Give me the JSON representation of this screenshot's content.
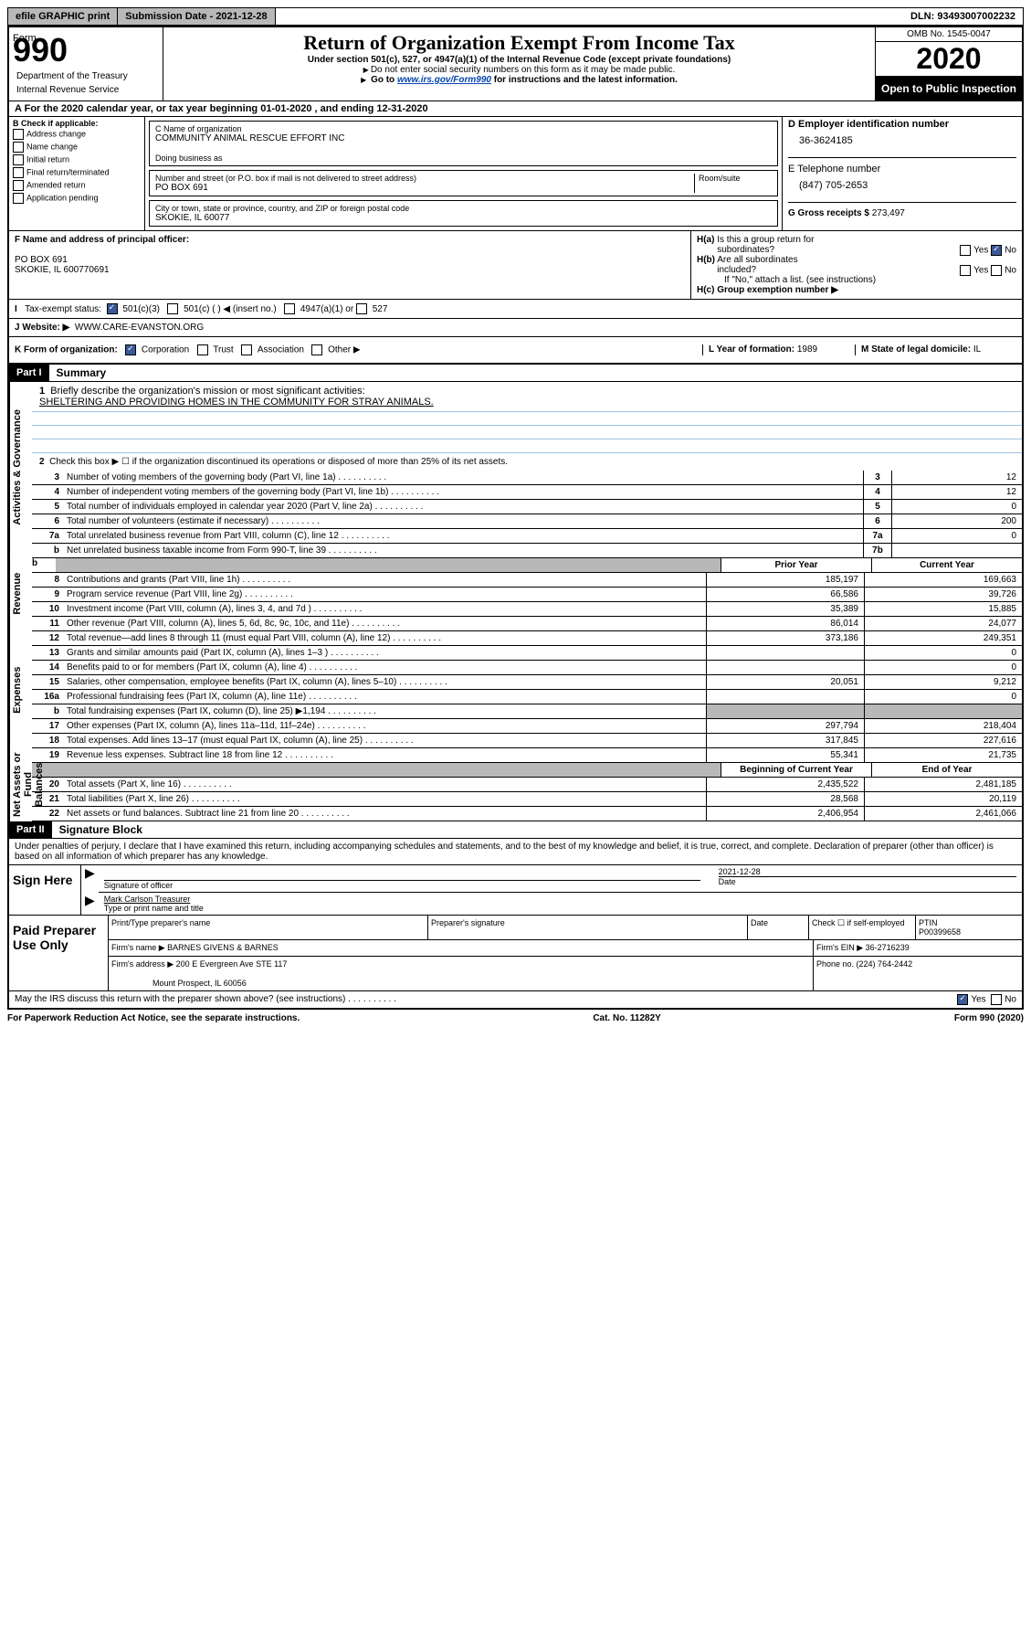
{
  "topbar": {
    "efile": "efile GRAPHIC print",
    "submission_label": "Submission Date - 2021-12-28",
    "dln": "DLN: 93493007002232"
  },
  "header": {
    "form_label": "Form",
    "form_number": "990",
    "title": "Return of Organization Exempt From Income Tax",
    "subtitle": "Under section 501(c), 527, or 4947(a)(1) of the Internal Revenue Code (except private foundations)",
    "instruction1": "Do not enter social security numbers on this form as it may be made public.",
    "instruction2_pre": "Go to ",
    "instruction2_link": "www.irs.gov/Form990",
    "instruction2_post": " for instructions and the latest information.",
    "omb": "OMB No. 1545-0047",
    "year": "2020",
    "open_public": "Open to Public Inspection",
    "dept": "Department of the Treasury",
    "irs": "Internal Revenue Service"
  },
  "section_a": {
    "text": "For the 2020 calendar year, or tax year beginning 01-01-2020    , and ending 12-31-2020"
  },
  "section_b": {
    "label": "B Check if applicable:",
    "items": [
      "Address change",
      "Name change",
      "Initial return",
      "Final return/terminated",
      "Amended return",
      "Application pending"
    ]
  },
  "section_c": {
    "name_label": "C Name of organization",
    "name": "COMMUNITY ANIMAL RESCUE EFFORT INC",
    "dba_label": "Doing business as",
    "address_label": "Number and street (or P.O. box if mail is not delivered to street address)",
    "room_label": "Room/suite",
    "address": "PO BOX 691",
    "city_label": "City or town, state or province, country, and ZIP or foreign postal code",
    "city": "SKOKIE, IL  60077"
  },
  "section_d": {
    "label": "D Employer identification number",
    "ein": "36-3624185"
  },
  "section_e": {
    "label": "E Telephone number",
    "phone": "(847) 705-2653"
  },
  "section_g": {
    "label": "G Gross receipts $ ",
    "amount": "273,497"
  },
  "section_f": {
    "label": "F Name and address of principal officer:",
    "addr1": "PO BOX 691",
    "addr2": "SKOKIE, IL  600770691"
  },
  "section_h": {
    "ha_label": "H(a)  Is this a group return for subordinates?",
    "hb_label": "H(b)  Are all subordinates included?",
    "hb_note": "If \"No,\" attach a list. (see instructions)",
    "hc_label": "H(c)  Group exemption number ▶"
  },
  "section_i": {
    "label": "Tax-exempt status:",
    "opts": [
      "501(c)(3)",
      "501(c) (  ) ◀ (insert no.)",
      "4947(a)(1) or",
      "527"
    ]
  },
  "section_j": {
    "label": "J    Website: ▶",
    "website": "WWW.CARE-EVANSTON.ORG"
  },
  "section_k": {
    "label": "K Form of organization:",
    "opts": [
      "Corporation",
      "Trust",
      "Association",
      "Other ▶"
    ]
  },
  "section_l": {
    "label": "L Year of formation: ",
    "year": "1989"
  },
  "section_m": {
    "label": "M State of legal domicile: ",
    "state": "IL"
  },
  "part1": {
    "header": "Part I",
    "title": "Summary",
    "side_labels": [
      "Activities & Governance",
      "Revenue",
      "Expenses",
      "Net Assets or Fund Balances"
    ],
    "line1_label": "Briefly describe the organization's mission or most significant activities:",
    "line1_text": "SHELTERING AND PROVIDING HOMES IN THE COMMUNITY FOR STRAY ANIMALS.",
    "line2": "Check this box ▶ ☐  if the organization discontinued its operations or disposed of more than 25% of its net assets.",
    "governance_rows": [
      {
        "n": "3",
        "desc": "Number of voting members of the governing body (Part VI, line 1a)",
        "box": "3",
        "val": "12"
      },
      {
        "n": "4",
        "desc": "Number of independent voting members of the governing body (Part VI, line 1b)",
        "box": "4",
        "val": "12"
      },
      {
        "n": "5",
        "desc": "Total number of individuals employed in calendar year 2020 (Part V, line 2a)",
        "box": "5",
        "val": "0"
      },
      {
        "n": "6",
        "desc": "Total number of volunteers (estimate if necessary)",
        "box": "6",
        "val": "200"
      },
      {
        "n": "7a",
        "desc": "Total unrelated business revenue from Part VIII, column (C), line 12",
        "box": "7a",
        "val": "0"
      },
      {
        "n": "b",
        "desc": "Net unrelated business taxable income from Form 990-T, line 39",
        "box": "7b",
        "val": ""
      }
    ],
    "col_headers": {
      "prior": "Prior Year",
      "current": "Current Year",
      "begin": "Beginning of Current Year",
      "end": "End of Year"
    },
    "revenue_rows": [
      {
        "n": "8",
        "desc": "Contributions and grants (Part VIII, line 1h)",
        "prior": "185,197",
        "curr": "169,663"
      },
      {
        "n": "9",
        "desc": "Program service revenue (Part VIII, line 2g)",
        "prior": "66,586",
        "curr": "39,726"
      },
      {
        "n": "10",
        "desc": "Investment income (Part VIII, column (A), lines 3, 4, and 7d )",
        "prior": "35,389",
        "curr": "15,885"
      },
      {
        "n": "11",
        "desc": "Other revenue (Part VIII, column (A), lines 5, 6d, 8c, 9c, 10c, and 11e)",
        "prior": "86,014",
        "curr": "24,077"
      },
      {
        "n": "12",
        "desc": "Total revenue—add lines 8 through 11 (must equal Part VIII, column (A), line 12)",
        "prior": "373,186",
        "curr": "249,351"
      }
    ],
    "expense_rows": [
      {
        "n": "13",
        "desc": "Grants and similar amounts paid (Part IX, column (A), lines 1–3 )",
        "prior": "",
        "curr": "0"
      },
      {
        "n": "14",
        "desc": "Benefits paid to or for members (Part IX, column (A), line 4)",
        "prior": "",
        "curr": "0"
      },
      {
        "n": "15",
        "desc": "Salaries, other compensation, employee benefits (Part IX, column (A), lines 5–10)",
        "prior": "20,051",
        "curr": "9,212"
      },
      {
        "n": "16a",
        "desc": "Professional fundraising fees (Part IX, column (A), line 11e)",
        "prior": "",
        "curr": "0"
      },
      {
        "n": "b",
        "desc": "Total fundraising expenses (Part IX, column (D), line 25) ▶1,194",
        "prior": "shaded",
        "curr": "shaded"
      },
      {
        "n": "17",
        "desc": "Other expenses (Part IX, column (A), lines 11a–11d, 11f–24e)",
        "prior": "297,794",
        "curr": "218,404"
      },
      {
        "n": "18",
        "desc": "Total expenses. Add lines 13–17 (must equal Part IX, column (A), line 25)",
        "prior": "317,845",
        "curr": "227,616"
      },
      {
        "n": "19",
        "desc": "Revenue less expenses. Subtract line 18 from line 12",
        "prior": "55,341",
        "curr": "21,735"
      }
    ],
    "net_rows": [
      {
        "n": "20",
        "desc": "Total assets (Part X, line 16)",
        "prior": "2,435,522",
        "curr": "2,481,185"
      },
      {
        "n": "21",
        "desc": "Total liabilities (Part X, line 26)",
        "prior": "28,568",
        "curr": "20,119"
      },
      {
        "n": "22",
        "desc": "Net assets or fund balances. Subtract line 21 from line 20",
        "prior": "2,406,954",
        "curr": "2,461,066"
      }
    ]
  },
  "part2": {
    "header": "Part II",
    "title": "Signature Block",
    "perjury": "Under penalties of perjury, I declare that I have examined this return, including accompanying schedules and statements, and to the best of my knowledge and belief, it is true, correct, and complete. Declaration of preparer (other than officer) is based on all information of which preparer has any knowledge.",
    "sign_here": "Sign Here",
    "sig_officer": "Signature of officer",
    "date_label": "Date",
    "date": "2021-12-28",
    "officer_name": "Mark Carlson  Treasurer",
    "type_label": "Type or print name and title",
    "paid_preparer": "Paid Preparer Use Only",
    "preparer_name_label": "Print/Type preparer's name",
    "preparer_sig_label": "Preparer's signature",
    "check_self": "Check ☐ if self-employed",
    "ptin_label": "PTIN",
    "ptin": "P00399658",
    "firm_name_label": "Firm's name    ▶",
    "firm_name": "BARNES GIVENS & BARNES",
    "firm_ein_label": "Firm's EIN ▶",
    "firm_ein": "36-2716239",
    "firm_addr_label": "Firm's address ▶",
    "firm_addr": "200 E Evergreen Ave STE 117",
    "firm_city": "Mount Prospect, IL  60056",
    "phone_label": "Phone no. ",
    "phone": "(224) 764-2442",
    "discuss": "May the IRS discuss this return with the preparer shown above? (see instructions)"
  },
  "footer": {
    "paperwork": "For Paperwork Reduction Act Notice, see the separate instructions.",
    "catno": "Cat. No. 11282Y",
    "formref": "Form 990 (2020)"
  },
  "colors": {
    "link": "#0645ad",
    "blue_line": "#9ec4e6",
    "shaded": "#b8b8b8",
    "check": "#3b5998"
  }
}
